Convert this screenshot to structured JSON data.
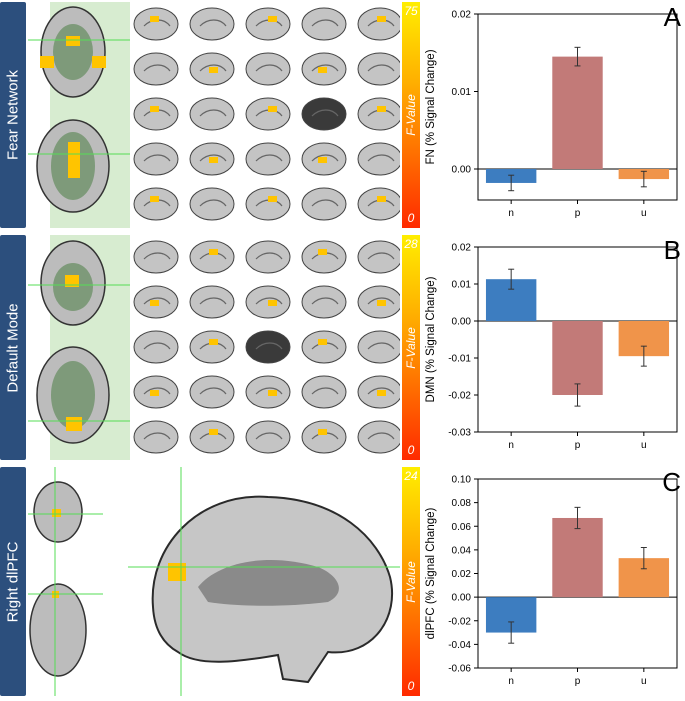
{
  "panels": [
    {
      "section_label": "Fear Network",
      "colorbar": {
        "label": "F-Value",
        "max": "75",
        "min": "0"
      }
    },
    {
      "section_label": "Default Mode",
      "colorbar": {
        "label": "F-Value",
        "max": "28",
        "min": "0"
      }
    },
    {
      "section_label": "Right dlPFC",
      "colorbar": {
        "label": "F-Value",
        "max": "24",
        "min": "0"
      }
    }
  ],
  "colors": {
    "n": "#3d7dc0",
    "p": "#c27a78",
    "u": "#f0944a",
    "band": "#2c4f7d",
    "activation": "#ffc400",
    "crosshair": "#55dd55"
  },
  "chart_data": [
    {
      "type": "bar",
      "panel_letter": "A",
      "categories": [
        "n",
        "p",
        "u"
      ],
      "values": [
        -0.0018,
        0.0145,
        -0.0013
      ],
      "errors": [
        0.001,
        0.0012,
        0.001
      ],
      "ylabel": "FN (% Signal Change)",
      "ylim": [
        -0.004,
        0.02
      ],
      "yticks": [
        0.0,
        0.01,
        0.02
      ],
      "ytick_labels": [
        "0.00",
        "0.01",
        "0.02"
      ],
      "xlabel": ""
    },
    {
      "type": "bar",
      "panel_letter": "B",
      "categories": [
        "n",
        "p",
        "u"
      ],
      "values": [
        0.0113,
        -0.02,
        -0.0095
      ],
      "errors": [
        0.0027,
        0.003,
        0.0027
      ],
      "ylabel": "DMN (% Signal Change)",
      "ylim": [
        -0.03,
        0.02
      ],
      "yticks": [
        -0.03,
        -0.02,
        -0.01,
        0.0,
        0.01,
        0.02
      ],
      "ytick_labels": [
        "-0.03",
        "-0.02",
        "-0.01",
        "0.00",
        "0.01",
        "0.02"
      ],
      "xlabel": ""
    },
    {
      "type": "bar",
      "panel_letter": "C",
      "categories": [
        "n",
        "p",
        "u"
      ],
      "values": [
        -0.03,
        0.067,
        0.033
      ],
      "errors": [
        0.009,
        0.009,
        0.009
      ],
      "ylabel": "dlPFC (% Signal Change)",
      "ylim": [
        -0.06,
        0.1
      ],
      "yticks": [
        -0.06,
        -0.04,
        -0.02,
        0.0,
        0.02,
        0.04,
        0.06,
        0.08,
        0.1
      ],
      "ytick_labels": [
        "-0.06",
        "-0.04",
        "-0.02",
        "0.00",
        "0.02",
        "0.04",
        "0.06",
        "0.08",
        "0.10"
      ],
      "xlabel": ""
    }
  ]
}
